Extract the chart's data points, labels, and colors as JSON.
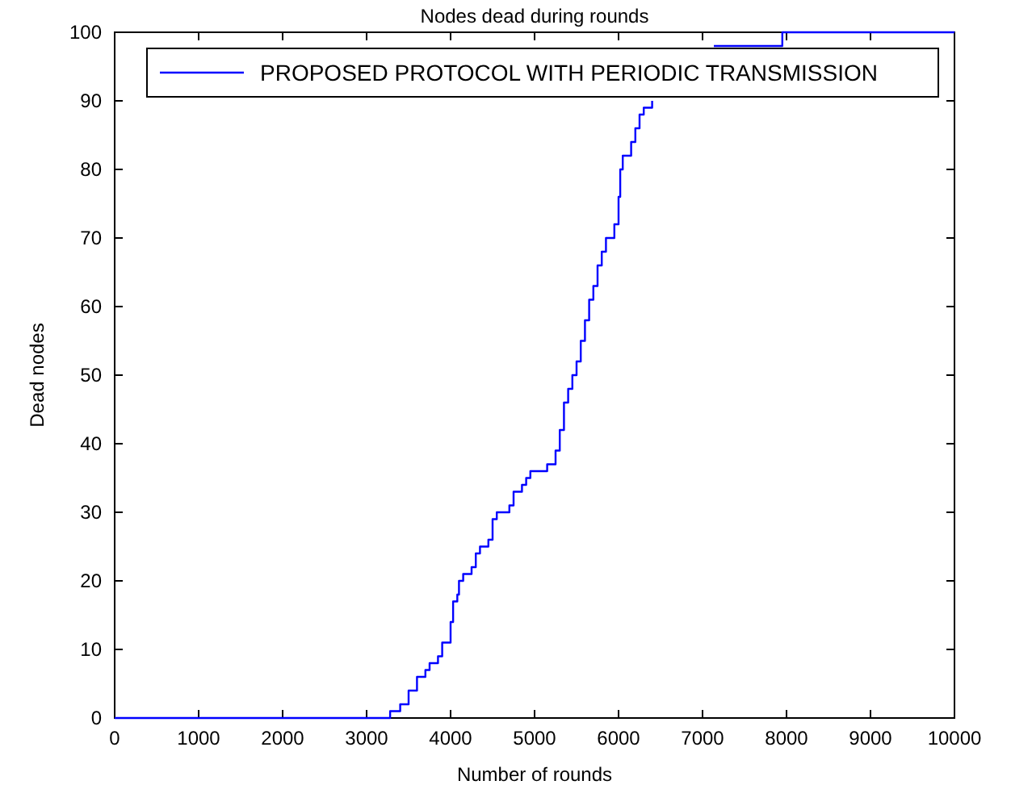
{
  "chart_data": {
    "type": "step",
    "title": "Nodes dead during rounds",
    "xlabel": "Number of rounds",
    "ylabel": "Dead nodes",
    "xlim": [
      0,
      10000
    ],
    "xticks": [
      0,
      1000,
      2000,
      3000,
      4000,
      5000,
      6000,
      7000,
      8000,
      9000,
      10000
    ],
    "ylim": [
      0,
      100
    ],
    "yticks": [
      0,
      10,
      20,
      30,
      40,
      50,
      60,
      70,
      80,
      90,
      100
    ],
    "grid": false,
    "legend": "top right",
    "line_style": "solid",
    "marker": "none",
    "series": [
      {
        "name": "PROPOSED PROTOCOL WITH PERIODIC TRANSMISSION",
        "color": "#0000ff",
        "x": [
          0,
          3280,
          3400,
          3500,
          3600,
          3700,
          3750,
          3850,
          3900,
          4000,
          4030,
          4080,
          4100,
          4150,
          4250,
          4300,
          4350,
          4450,
          4500,
          4550,
          4700,
          4750,
          4850,
          4900,
          4950,
          5150,
          5250,
          5300,
          5350,
          5400,
          5450,
          5500,
          5550,
          5600,
          5650,
          5700,
          5750,
          5800,
          5850,
          5950,
          6000,
          6020,
          6050,
          6150,
          6200,
          6250,
          6300,
          6400,
          6450,
          7135,
          7950,
          10000
        ],
        "values": [
          0,
          1,
          2,
          4,
          6,
          7,
          8,
          9,
          11,
          14,
          17,
          18,
          20,
          21,
          22,
          24,
          25,
          26,
          29,
          30,
          31,
          33,
          34,
          35,
          36,
          37,
          39,
          42,
          46,
          48,
          50,
          52,
          55,
          58,
          61,
          63,
          66,
          68,
          70,
          72,
          76,
          80,
          82,
          84,
          86,
          88,
          89,
          90,
          null,
          98,
          100,
          100
        ]
      }
    ]
  }
}
